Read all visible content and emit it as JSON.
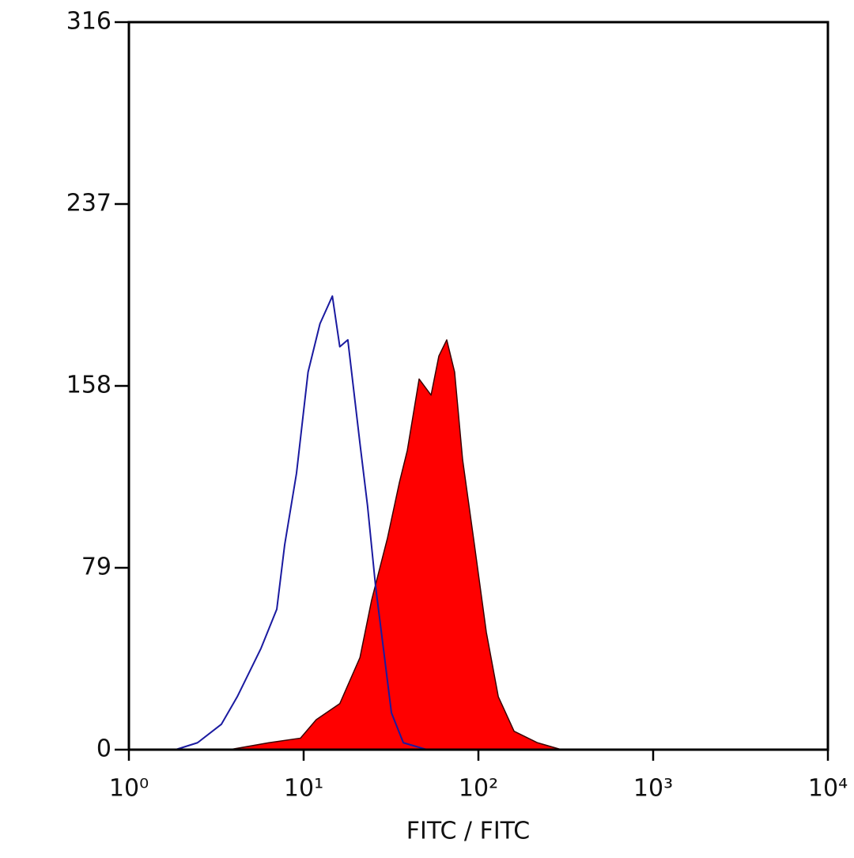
{
  "chart_data": {
    "type": "area",
    "xlabel": "FITC / FITC",
    "xscale": "log",
    "xlim": [
      1,
      10000
    ],
    "xticks": [
      {
        "value": 1,
        "label": "10⁰"
      },
      {
        "value": 10,
        "label": "10¹"
      },
      {
        "value": 100,
        "label": "10²"
      },
      {
        "value": 1000,
        "label": "10³"
      },
      {
        "value": 10000,
        "label": "10⁴"
      }
    ],
    "ylim": [
      0,
      316
    ],
    "yticks": [
      0,
      79,
      158,
      237,
      316
    ],
    "series": [
      {
        "color": "#ff0000",
        "filled": true,
        "x": [
          3.76,
          6.32,
          9.59,
          11.8,
          16.1,
          21.0,
          24.5,
          30.2,
          35.3,
          39.2,
          45.8,
          53.6,
          59.4,
          65.9,
          73.1,
          81.2,
          94.9,
          111,
          130,
          160,
          218,
          299
        ],
        "values": [
          0,
          3,
          5,
          13,
          20,
          40,
          65,
          92,
          116,
          130,
          161,
          154,
          171,
          178,
          164,
          126,
          89,
          51,
          23,
          8,
          3,
          0
        ]
      },
      {
        "color": "#1a1aa0",
        "filled": false,
        "x": [
          1.85,
          2.47,
          3.38,
          4.17,
          5.7,
          7.02,
          7.79,
          9.1,
          10.6,
          12.4,
          14.6,
          16.1,
          17.9,
          21.0,
          23.2,
          25.8,
          28.6,
          31.8,
          37.2,
          50.8
        ],
        "values": [
          0,
          3,
          11,
          23,
          44,
          61,
          89,
          120,
          164,
          185,
          197,
          175,
          178,
          133,
          106,
          71,
          44,
          16,
          3,
          0
        ]
      }
    ]
  }
}
